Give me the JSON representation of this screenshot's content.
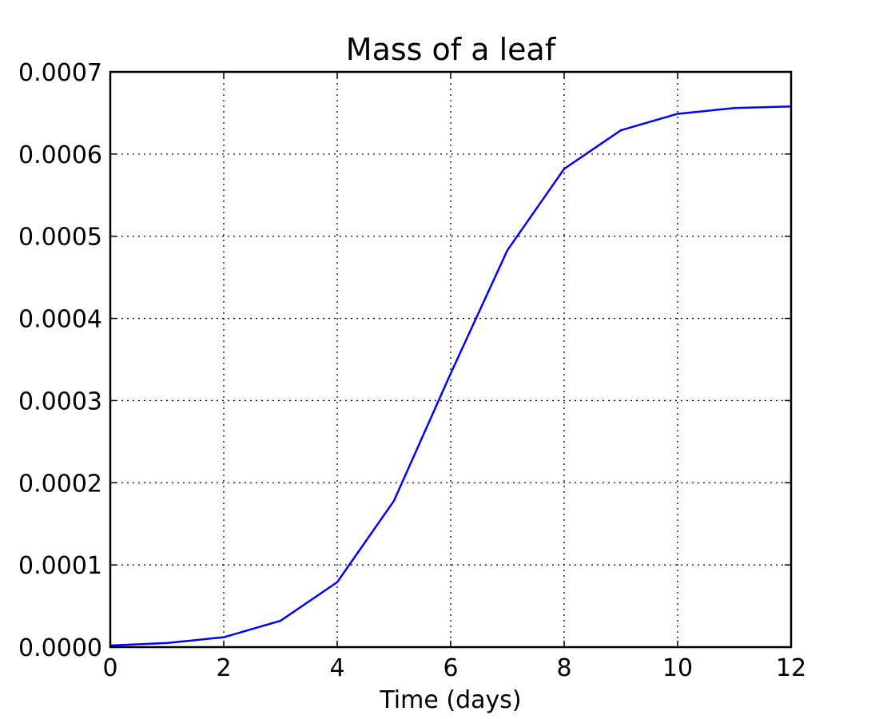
{
  "chart_data": {
    "type": "line",
    "title": "Mass of a leaf",
    "xlabel": "Time (days)",
    "ylabel": "",
    "xlim": [
      0,
      12
    ],
    "ylim": [
      0,
      0.0007
    ],
    "x_ticks": [
      0,
      2,
      4,
      6,
      8,
      10,
      12
    ],
    "x_tick_labels": [
      "0",
      "2",
      "4",
      "6",
      "8",
      "10",
      "12"
    ],
    "y_ticks": [
      0,
      0.0001,
      0.0002,
      0.0003,
      0.0004,
      0.0005,
      0.0006,
      0.0007
    ],
    "y_tick_labels": [
      "0.0000",
      "0.0001",
      "0.0002",
      "0.0003",
      "0.0004",
      "0.0005",
      "0.0006",
      "0.0007"
    ],
    "grid": true,
    "series": [
      {
        "color": "#0000ff",
        "x": [
          0,
          1,
          2,
          3,
          4,
          5,
          6,
          7,
          8,
          9,
          10,
          11,
          12
        ],
        "y": [
          2e-06,
          5e-06,
          1.2e-05,
          3.2e-05,
          7.9e-05,
          0.000178,
          0.000333,
          0.000483,
          0.000582,
          0.000629,
          0.000649,
          0.000656,
          0.000658
        ]
      }
    ]
  }
}
